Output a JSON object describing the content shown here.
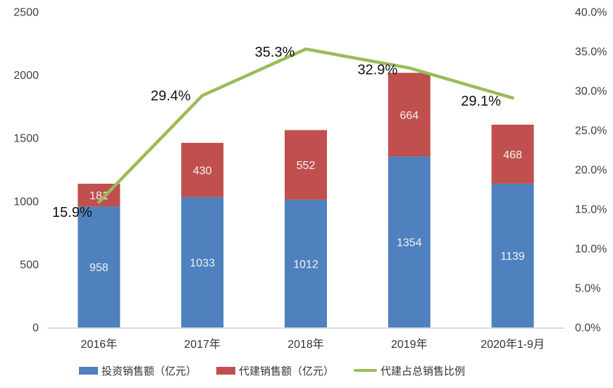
{
  "chart_data": {
    "type": "bar",
    "subtype": "stacked-bar-with-line",
    "categories": [
      "2016年",
      "2017年",
      "2018年",
      "2019年",
      "2020年1-9月"
    ],
    "series": [
      {
        "name": "投资销售额（亿元）",
        "type": "bar",
        "color": "#4E81BD",
        "values": [
          958,
          1033,
          1012,
          1354,
          1139
        ],
        "value_labels": [
          "958",
          "1033",
          "1012",
          "1354",
          "1139"
        ]
      },
      {
        "name": "代建销售额（亿元）",
        "type": "bar",
        "color": "#C0504D",
        "values": [
          181,
          430,
          552,
          664,
          468
        ],
        "value_labels": [
          "181",
          "430",
          "552",
          "664",
          "468"
        ]
      },
      {
        "name": "代建占总销售比例",
        "type": "line",
        "axis": "right",
        "color": "#9BBB59",
        "values": [
          15.9,
          29.4,
          35.3,
          32.9,
          29.1
        ],
        "value_labels": [
          "15.9%",
          "29.4%",
          "35.3%",
          "32.9%",
          "29.1%"
        ]
      }
    ],
    "left_axis": {
      "min": 0,
      "max": 2500,
      "ticks": [
        "0",
        "500",
        "1000",
        "1500",
        "2000",
        "2500"
      ]
    },
    "right_axis": {
      "min": 0,
      "max": 40,
      "ticks": [
        "0.0%",
        "5.0%",
        "10.0%",
        "15.0%",
        "20.0%",
        "25.0%",
        "30.0%",
        "35.0%",
        "40.0%"
      ]
    },
    "stacked": true,
    "grid": false,
    "legend_position": "bottom",
    "axis_line_color": "#D9D9D9",
    "background_color": "#FFFFFF"
  },
  "legend": {
    "items": [
      {
        "label": "投资销售额（亿元）",
        "color": "#4E81BD",
        "marker": "square"
      },
      {
        "label": "代建销售额（亿元）",
        "color": "#C0504D",
        "marker": "square"
      },
      {
        "label": "代建占总销售比例",
        "color": "#9BBB59",
        "marker": "line"
      }
    ]
  }
}
